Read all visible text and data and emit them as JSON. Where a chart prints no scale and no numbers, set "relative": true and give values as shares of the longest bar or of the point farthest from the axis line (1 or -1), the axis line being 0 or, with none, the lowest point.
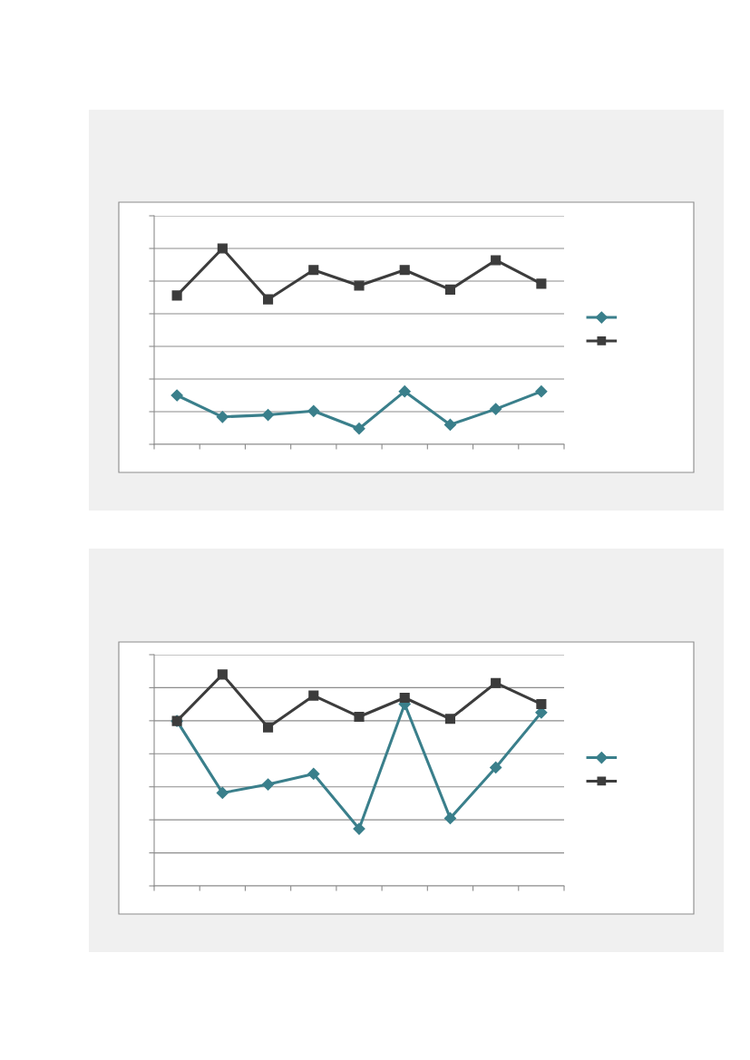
{
  "chart_data": [
    {
      "type": "line",
      "relative": true,
      "categories": [
        null,
        null,
        null,
        null,
        null,
        null,
        null,
        null,
        null
      ],
      "grid": "y",
      "tick_labels": false,
      "line_style": "solid",
      "series": [
        {
          "color": "#3a7f8b",
          "marker": "diamond",
          "values": [
            0.25,
            0.14,
            0.15,
            0.17,
            0.08,
            0.27,
            0.1,
            0.18,
            0.27
          ]
        },
        {
          "color": "#3c3c3c",
          "marker": "square",
          "values": [
            0.76,
            1.0,
            0.74,
            0.89,
            0.81,
            0.89,
            0.79,
            0.94,
            0.82
          ]
        }
      ]
    },
    {
      "type": "line",
      "relative": true,
      "categories": [
        null,
        null,
        null,
        null,
        null,
        null,
        null,
        null,
        null
      ],
      "grid": "y",
      "tick_labels": false,
      "line_style": "solid",
      "series": [
        {
          "color": "#3a7f8b",
          "marker": "diamond",
          "values": [
            0.78,
            0.44,
            0.48,
            0.53,
            0.27,
            0.86,
            0.32,
            0.56,
            0.82
          ]
        },
        {
          "color": "#3c3c3c",
          "marker": "square",
          "values": [
            0.78,
            1.0,
            0.75,
            0.9,
            0.8,
            0.89,
            0.79,
            0.96,
            0.86
          ]
        }
      ]
    }
  ]
}
